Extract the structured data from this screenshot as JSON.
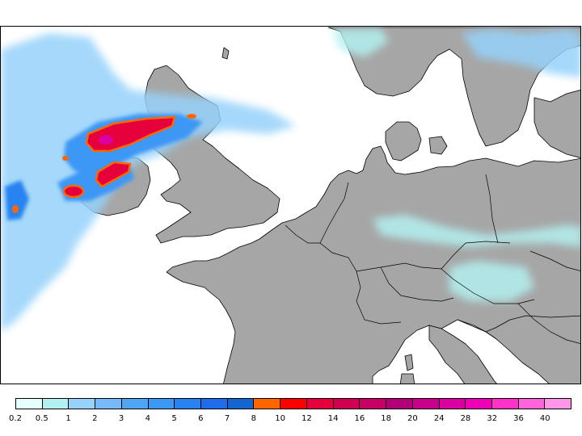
{
  "map": {
    "land_color": "#a6a6a6",
    "sea_color": "#ffffff",
    "coast_color": "#000000"
  },
  "legend": {
    "labels": [
      "0.2",
      "0.5",
      "1",
      "2",
      "3",
      "4",
      "5",
      "6",
      "7",
      "8",
      "10",
      "12",
      "14",
      "16",
      "18",
      "20",
      "24",
      "28",
      "32",
      "36",
      "40"
    ],
    "colors": [
      "#e6ffff",
      "#b4f0f0",
      "#96d2fa",
      "#78b9fa",
      "#50a5f5",
      "#3c97f5",
      "#2883f0",
      "#1e6eeb",
      "#1464d2",
      "#ff6600",
      "#ff0000",
      "#e6003c",
      "#d20050",
      "#c80064",
      "#b40078",
      "#c8008c",
      "#dc00a0",
      "#f000b4",
      "#ff32c8",
      "#ff64dc",
      "#ff96e6"
    ]
  }
}
